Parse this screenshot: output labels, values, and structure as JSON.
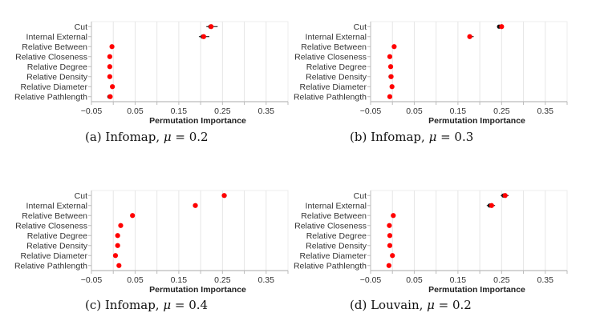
{
  "colors": {
    "point": "#ff0000",
    "errorbar": "#000000",
    "grid": "#e6e6e6",
    "axis": "#bbbbbb",
    "text": "#333333"
  },
  "chart_data": [
    {
      "type": "scatter",
      "id": "a",
      "caption": {
        "prefix": "(a) Infomap, ",
        "mu": "μ",
        "eq": " = 0.2"
      },
      "xlabel": "Permutation Importance",
      "xlim": [
        -0.05,
        0.4
      ],
      "xticks": [
        "-0.05",
        "0.05",
        "0.15",
        "0.25",
        "0.35"
      ],
      "xtick_values": [
        -0.05,
        0.05,
        0.15,
        0.25,
        0.35
      ],
      "grid_values": [
        0.0,
        0.05,
        0.1,
        0.15,
        0.2,
        0.25,
        0.3,
        0.35
      ],
      "categories": [
        "Cut",
        "Internal External",
        "Relative Between",
        "Relative Closeness",
        "Relative Degree",
        "Relative Density",
        "Relative Diameter",
        "Relative Pathlength"
      ],
      "values": [
        0.224,
        0.207,
        -0.003,
        -0.008,
        -0.008,
        -0.008,
        -0.002,
        -0.007
      ],
      "err_low": [
        0.213,
        0.196,
        -0.003,
        -0.008,
        -0.008,
        -0.008,
        -0.002,
        -0.01
      ],
      "err_high": [
        0.239,
        0.22,
        -0.003,
        -0.008,
        -0.008,
        -0.008,
        -0.002,
        -0.007
      ]
    },
    {
      "type": "scatter",
      "id": "b",
      "caption": {
        "prefix": "(b) Infomap, ",
        "mu": "μ",
        "eq": " = 0.3"
      },
      "xlabel": "Permutation Importance",
      "xlim": [
        -0.05,
        0.4
      ],
      "xticks": [
        "-0.05",
        "0.05",
        "0.15",
        "0.25",
        "0.35"
      ],
      "xtick_values": [
        -0.05,
        0.05,
        0.15,
        0.25,
        0.35
      ],
      "grid_values": [
        0.0,
        0.05,
        0.1,
        0.15,
        0.2,
        0.25,
        0.3,
        0.35
      ],
      "categories": [
        "Cut",
        "Internal External",
        "Relative Between",
        "Relative Closeness",
        "Relative Degree",
        "Relative Density",
        "Relative Diameter",
        "Relative Pathlength"
      ],
      "values": [
        0.25,
        0.177,
        0.004,
        -0.006,
        -0.004,
        -0.003,
        -0.001,
        -0.006
      ],
      "err_low": [
        0.241,
        0.172,
        0.004,
        -0.006,
        -0.004,
        -0.005,
        -0.001,
        -0.006
      ],
      "err_high": [
        0.25,
        0.186,
        0.004,
        -0.006,
        -0.004,
        -0.003,
        -0.001,
        -0.006
      ]
    },
    {
      "type": "scatter",
      "id": "c",
      "caption": {
        "prefix": "(c) Infomap, ",
        "mu": "μ",
        "eq": " = 0.4"
      },
      "xlabel": "Permutation Importance",
      "xlim": [
        -0.05,
        0.4
      ],
      "xticks": [
        "-0.05",
        "0.05",
        "0.15",
        "0.25",
        "0.35"
      ],
      "xtick_values": [
        -0.05,
        0.05,
        0.15,
        0.25,
        0.35
      ],
      "grid_values": [
        0.0,
        0.05,
        0.1,
        0.15,
        0.2,
        0.25,
        0.3,
        0.35
      ],
      "categories": [
        "Cut",
        "Internal External",
        "Relative Between",
        "Relative Closeness",
        "Relative Degree",
        "Relative Density",
        "Relative Diameter",
        "Relative Pathlength"
      ],
      "values": [
        0.254,
        0.188,
        0.044,
        0.017,
        0.01,
        0.01,
        0.005,
        0.013
      ],
      "err_low": [
        0.254,
        0.186,
        0.044,
        0.017,
        0.01,
        0.01,
        0.005,
        0.013
      ],
      "err_high": [
        0.257,
        0.189,
        0.044,
        0.017,
        0.01,
        0.01,
        0.005,
        0.013
      ]
    },
    {
      "type": "scatter",
      "id": "d",
      "caption": {
        "prefix": "(d) Louvain, ",
        "mu": "μ",
        "eq": " = 0.2"
      },
      "xlabel": "Permutation Importance",
      "xlim": [
        -0.05,
        0.4
      ],
      "xticks": [
        "-0.05",
        "0.05",
        "0.15",
        "0.25",
        "0.35"
      ],
      "xtick_values": [
        -0.05,
        0.05,
        0.15,
        0.25,
        0.35
      ],
      "grid_values": [
        0.0,
        0.05,
        0.1,
        0.15,
        0.2,
        0.25,
        0.3,
        0.35
      ],
      "categories": [
        "Cut",
        "Internal External",
        "Relative Between",
        "Relative Closeness",
        "Relative Degree",
        "Relative Density",
        "Relative Diameter",
        "Relative Pathlength"
      ],
      "values": [
        0.258,
        0.227,
        0.002,
        -0.007,
        -0.006,
        -0.006,
        0.0,
        -0.008
      ],
      "err_low": [
        0.248,
        0.216,
        0.002,
        -0.007,
        -0.006,
        -0.006,
        0.0,
        -0.008
      ],
      "err_high": [
        0.266,
        0.235,
        0.002,
        -0.007,
        -0.006,
        -0.006,
        0.0,
        -0.008
      ]
    }
  ]
}
